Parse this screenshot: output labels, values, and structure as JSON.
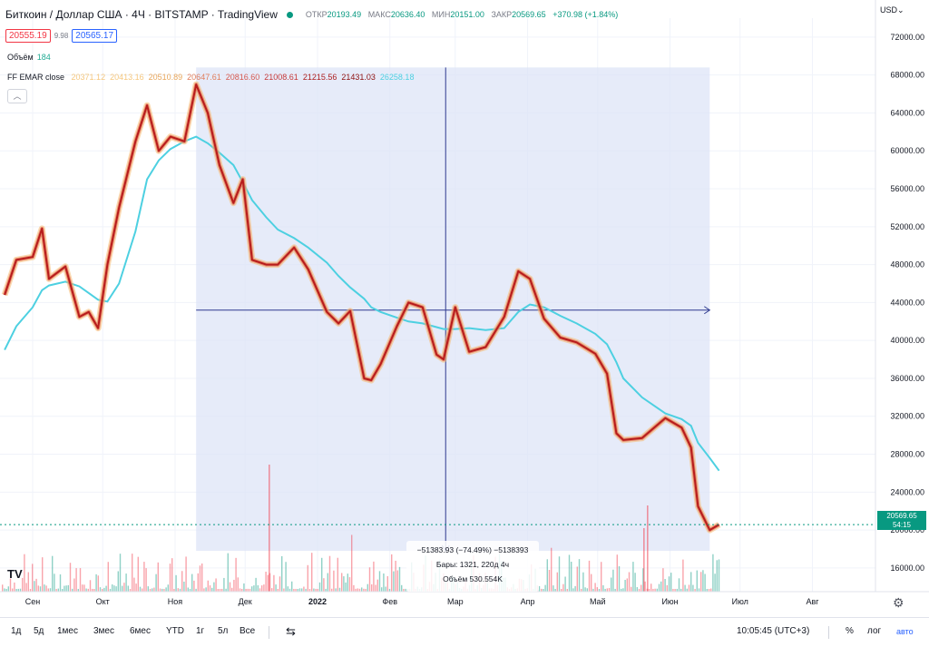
{
  "header": {
    "symbol_title": "Биткоин / Доллар США · 4Ч · BITSTAMP · TradingView",
    "ohlc": {
      "open_label": "ОТКР",
      "open": "20193.49",
      "high_label": "МАКС",
      "high": "20636.40",
      "low_label": "МИН",
      "low": "20151.00",
      "close_label": "ЗАКР",
      "close": "20569.65",
      "change": "+370.98 (+1.84%)"
    },
    "sell_price": "20555.19",
    "spread": "9.98",
    "buy_price": "20565.17"
  },
  "legends": {
    "volume_label": "Объём",
    "volume_value": "184",
    "ema_label": "FF EMAR close",
    "ema_values": [
      "20371.12",
      "20413.16",
      "20510.89",
      "20647.61",
      "20816.60",
      "21008.61",
      "21215.56",
      "21431.03",
      "26258.18"
    ],
    "ema_value_colors": [
      "#f5c77e",
      "#f5c77e",
      "#e8a65a",
      "#e07e5c",
      "#d65a50",
      "#c63a3a",
      "#ad1f1f",
      "#8e1010",
      "#4dd0e1"
    ]
  },
  "measure": {
    "line1": "−51383.93 (−74.49%) −5138393",
    "line2": "Бары: 1321, 220д 4ч",
    "line3": "Объём 530.554K"
  },
  "axis": {
    "currency": "USD",
    "last_price": "20569.65",
    "countdown": "54:15"
  },
  "toolbar": {
    "ranges": [
      "1д",
      "5д",
      "1мес",
      "3мес",
      "6мес",
      "YTD",
      "1г",
      "5л",
      "Все"
    ],
    "time": "10:05:45 (UTC+3)",
    "percent": "%",
    "log": "лог",
    "auto": "авто"
  },
  "icons": {
    "live": "live-dot-icon",
    "collapse": "chevron-up-icon",
    "compare": "calendar-range-icon",
    "settings": "gear-icon",
    "logo": "tradingview-logo"
  },
  "colors": {
    "up": "#089981",
    "down": "#f23645",
    "ema_slow": "#4dd0e1",
    "ema_fast": "#b71c1c",
    "measure_fill": "#dde4f7",
    "accent": "#2962ff"
  },
  "chart_data": {
    "type": "line",
    "title": "Биткоин / Доллар США · 4Ч · BITSTAMP",
    "xlabel": "",
    "ylabel": "USD",
    "x_ticks": [
      "Сен",
      "Окт",
      "Ноя",
      "Дек",
      "2022",
      "Фев",
      "Мар",
      "Апр",
      "Май",
      "Июн",
      "Июл",
      "Авг"
    ],
    "y_ticks": [
      16000,
      20000,
      24000,
      28000,
      32000,
      36000,
      40000,
      44000,
      48000,
      52000,
      56000,
      60000,
      64000,
      68000,
      72000
    ],
    "ylim": [
      13500,
      74000
    ],
    "x": [
      "2021-08-20",
      "2021-08-25",
      "2021-09-01",
      "2021-09-05",
      "2021-09-08",
      "2021-09-15",
      "2021-09-21",
      "2021-09-25",
      "2021-09-29",
      "2021-10-03",
      "2021-10-08",
      "2021-10-15",
      "2021-10-20",
      "2021-10-25",
      "2021-10-30",
      "2021-11-05",
      "2021-11-10",
      "2021-11-15",
      "2021-11-20",
      "2021-11-26",
      "2021-11-30",
      "2021-12-04",
      "2021-12-10",
      "2021-12-15",
      "2021-12-22",
      "2021-12-28",
      "2022-01-05",
      "2022-01-10",
      "2022-01-15",
      "2022-01-21",
      "2022-01-24",
      "2022-01-28",
      "2022-02-04",
      "2022-02-09",
      "2022-02-15",
      "2022-02-21",
      "2022-02-24",
      "2022-03-01",
      "2022-03-07",
      "2022-03-14",
      "2022-03-22",
      "2022-03-28",
      "2022-04-02",
      "2022-04-08",
      "2022-04-15",
      "2022-04-22",
      "2022-04-30",
      "2022-05-05",
      "2022-05-09",
      "2022-05-12",
      "2022-05-20",
      "2022-05-30",
      "2022-06-06",
      "2022-06-10",
      "2022-06-13",
      "2022-06-18",
      "2022-06-22"
    ],
    "series": [
      {
        "name": "",
        "color": "#b71c1c",
        "values": [
          44800,
          48500,
          48800,
          51800,
          46500,
          47800,
          42500,
          43000,
          41300,
          48000,
          54000,
          61000,
          64800,
          60000,
          61500,
          61000,
          67000,
          64000,
          58500,
          54500,
          57000,
          48500,
          48000,
          48000,
          49800,
          47500,
          43000,
          41800,
          43100,
          36000,
          35800,
          37500,
          41500,
          44000,
          43500,
          38500,
          38000,
          43500,
          38800,
          39300,
          42500,
          47300,
          46500,
          42300,
          40300,
          39800,
          38600,
          36500,
          30200,
          29500,
          29700,
          31800,
          30800,
          28700,
          22500,
          20000,
          20570
        ]
      },
      {
        "name": "",
        "color": "#4dd0e1",
        "values": [
          39000,
          41500,
          43500,
          45300,
          45800,
          46200,
          45700,
          45000,
          44300,
          44100,
          46000,
          51500,
          57000,
          59000,
          60200,
          61000,
          61500,
          60800,
          59800,
          58500,
          56700,
          54800,
          53000,
          51700,
          50800,
          49800,
          48200,
          46800,
          45600,
          44400,
          43500,
          43000,
          42400,
          42000,
          41800,
          41400,
          41200,
          41200,
          41300,
          41100,
          41300,
          43000,
          43800,
          43500,
          42600,
          41800,
          40700,
          39600,
          37700,
          36000,
          34000,
          32300,
          31700,
          31000,
          29200,
          27600,
          26258
        ]
      }
    ],
    "volume_label": "Объём",
    "measure_range": {
      "from": "2021-11-10",
      "to": "2022-06-18",
      "price_change": -51383.93,
      "percent_change": -74.49,
      "bars": 1321
    },
    "last_price": 20569.65,
    "grid": true,
    "legend": "top-left"
  }
}
